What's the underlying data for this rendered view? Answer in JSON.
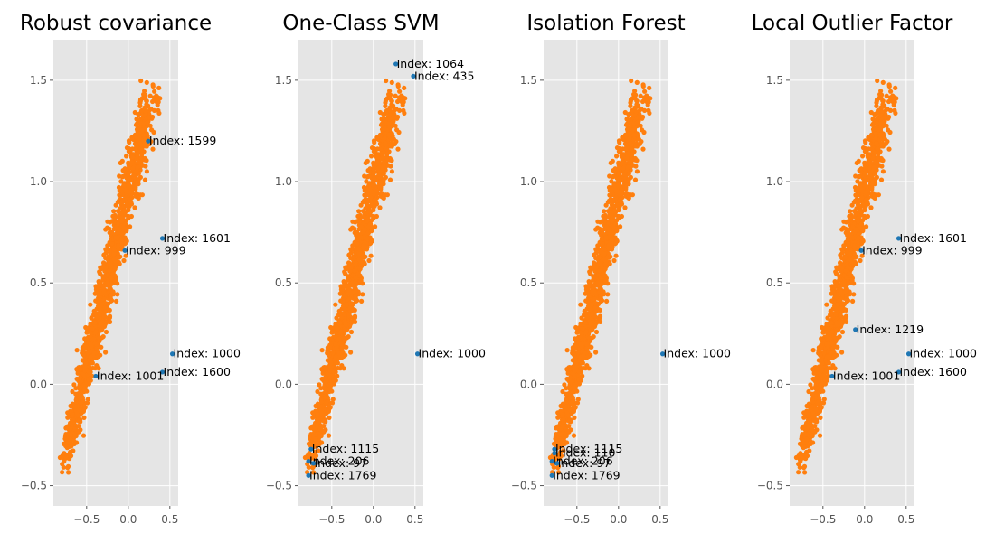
{
  "chart_data": [
    {
      "type": "scatter",
      "title": "Robust covariance",
      "xlim": [
        -0.9,
        0.6
      ],
      "ylim": [
        -0.6,
        1.7
      ],
      "xticks": [
        -0.5,
        0.0,
        0.5
      ],
      "xtick_labels": [
        "−0.5",
        "0.0",
        "0.5"
      ],
      "yticks": [
        -0.5,
        0.0,
        0.5,
        1.0,
        1.5
      ],
      "ytick_labels": [
        "−0.5",
        "0.0",
        "0.5",
        "1.0",
        "1.5"
      ],
      "grid": true,
      "outliers": [
        {
          "label": "Index: 1599",
          "x": 0.24,
          "y": 1.2
        },
        {
          "label": "Index: 1601",
          "x": 0.41,
          "y": 0.72
        },
        {
          "label": "Index: 999",
          "x": -0.04,
          "y": 0.66
        },
        {
          "label": "Index: 1000",
          "x": 0.53,
          "y": 0.15
        },
        {
          "label": "Index: 1600",
          "x": 0.41,
          "y": 0.06
        },
        {
          "label": "Index: 1001",
          "x": -0.39,
          "y": 0.04
        }
      ]
    },
    {
      "type": "scatter",
      "title": "One-Class SVM",
      "xlim": [
        -0.9,
        0.6
      ],
      "ylim": [
        -0.6,
        1.7
      ],
      "xticks": [
        -0.5,
        0.0,
        0.5
      ],
      "xtick_labels": [
        "−0.5",
        "0.0",
        "0.5"
      ],
      "yticks": [
        -0.5,
        0.0,
        0.5,
        1.0,
        1.5
      ],
      "ytick_labels": [
        "−0.5",
        "0.0",
        "0.5",
        "1.0",
        "1.5"
      ],
      "grid": true,
      "outliers": [
        {
          "label": "Index: 1064",
          "x": 0.27,
          "y": 1.58
        },
        {
          "label": "Index: 435",
          "x": 0.48,
          "y": 1.52
        },
        {
          "label": "Index: 1000",
          "x": 0.53,
          "y": 0.15
        },
        {
          "label": "Index: 1115",
          "x": -0.75,
          "y": -0.32
        },
        {
          "label": "Index: 206",
          "x": -0.78,
          "y": -0.38
        },
        {
          "label": "Index: 97",
          "x": -0.72,
          "y": -0.39
        },
        {
          "label": "Index: 1769",
          "x": -0.78,
          "y": -0.45
        }
      ]
    },
    {
      "type": "scatter",
      "title": "Isolation Forest",
      "xlim": [
        -0.9,
        0.6
      ],
      "ylim": [
        -0.6,
        1.7
      ],
      "xticks": [
        -0.5,
        0.0,
        0.5
      ],
      "xtick_labels": [
        "−0.5",
        "0.0",
        "0.5"
      ],
      "yticks": [
        -0.5,
        0.0,
        0.5,
        1.0,
        1.5
      ],
      "ytick_labels": [
        "−0.5",
        "0.0",
        "0.5",
        "1.0",
        "1.5"
      ],
      "grid": true,
      "outliers": [
        {
          "label": "Index: 1000",
          "x": 0.53,
          "y": 0.15
        },
        {
          "label": "Index: 1115",
          "x": -0.77,
          "y": -0.32
        },
        {
          "label": "Index: 110",
          "x": -0.77,
          "y": -0.34
        },
        {
          "label": "Index: 206",
          "x": -0.8,
          "y": -0.38
        },
        {
          "label": "Index: 97",
          "x": -0.74,
          "y": -0.39
        },
        {
          "label": "Index: 1769",
          "x": -0.8,
          "y": -0.45
        }
      ]
    },
    {
      "type": "scatter",
      "title": "Local Outlier Factor",
      "xlim": [
        -0.9,
        0.6
      ],
      "ylim": [
        -0.6,
        1.7
      ],
      "xticks": [
        -0.5,
        0.0,
        0.5
      ],
      "xtick_labels": [
        "−0.5",
        "0.0",
        "0.5"
      ],
      "yticks": [
        -0.5,
        0.0,
        0.5,
        1.0,
        1.5
      ],
      "ytick_labels": [
        "−0.5",
        "0.0",
        "0.5",
        "1.0",
        "1.5"
      ],
      "grid": true,
      "outliers": [
        {
          "label": "Index: 1601",
          "x": 0.41,
          "y": 0.72
        },
        {
          "label": "Index: 999",
          "x": -0.04,
          "y": 0.66
        },
        {
          "label": "Index: 1219",
          "x": -0.11,
          "y": 0.27
        },
        {
          "label": "Index: 1000",
          "x": 0.53,
          "y": 0.15
        },
        {
          "label": "Index: 1600",
          "x": 0.41,
          "y": 0.06
        },
        {
          "label": "Index: 1001",
          "x": -0.39,
          "y": 0.04
        }
      ]
    }
  ],
  "colors": {
    "inlier": "#ff7f0e",
    "outlier": "#1f77b4",
    "axes_bg": "#e5e5e5",
    "grid": "#ffffff",
    "tick_label": "#555555"
  }
}
